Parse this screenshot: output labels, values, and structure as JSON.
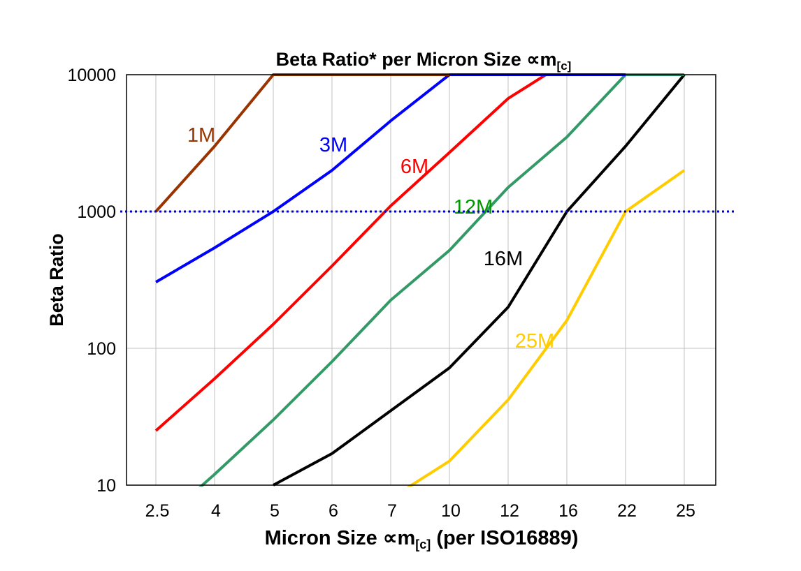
{
  "chart_data": {
    "type": "line",
    "title": "Beta Ratio* per Micron Size ",
    "title_unit": "∝m",
    "title_sub": "[c]",
    "xlabel": "Micron Size ",
    "xlabel_unit": "∝m",
    "xlabel_sub": "[c]",
    "xlabel_suffix": " (per ISO16889)",
    "ylabel": "Beta Ratio",
    "yscale": "log",
    "ylim": [
      10,
      10000
    ],
    "yticks": [
      "10",
      "100",
      "1000",
      "10000"
    ],
    "categories": [
      "2.5",
      "4",
      "5",
      "6",
      "7",
      "10",
      "12",
      "16",
      "22",
      "25"
    ],
    "grid": true,
    "reference_line": {
      "y": 1000,
      "color": "#0000CC",
      "style": "dotted"
    },
    "series": [
      {
        "name": "16M",
        "color": "#000000",
        "label_color": "#000000",
        "values": [
          null,
          null,
          10,
          17,
          35,
          72,
          200,
          1000,
          3000,
          10000
        ]
      },
      {
        "name": "25M",
        "color": "#FFCC00",
        "label_color": "#FFCC00",
        "values": [
          null,
          null,
          null,
          null,
          8,
          15,
          42,
          160,
          1000,
          2000
        ]
      },
      {
        "name": "12M",
        "color": "#339966",
        "label_color": "#009900",
        "values": [
          5,
          12,
          30,
          80,
          225,
          520,
          1500,
          3500,
          10000,
          10000
        ]
      },
      {
        "name": "6M",
        "color": "#FF0000",
        "label_color": "#FF0000",
        "values": [
          25,
          60,
          150,
          400,
          1100,
          2700,
          6700,
          12500,
          null,
          null
        ]
      },
      {
        "name": "3M",
        "color": "#0000FF",
        "label_color": "#0000FF",
        "values": [
          305,
          543,
          1000,
          2000,
          4600,
          10000,
          10000,
          10000,
          10000,
          null
        ]
      },
      {
        "name": "1M",
        "color": "#993300",
        "label_color": "#993300",
        "values": [
          1000,
          3000,
          10000,
          10000,
          10000,
          10000,
          null,
          null,
          null,
          null
        ]
      }
    ]
  }
}
